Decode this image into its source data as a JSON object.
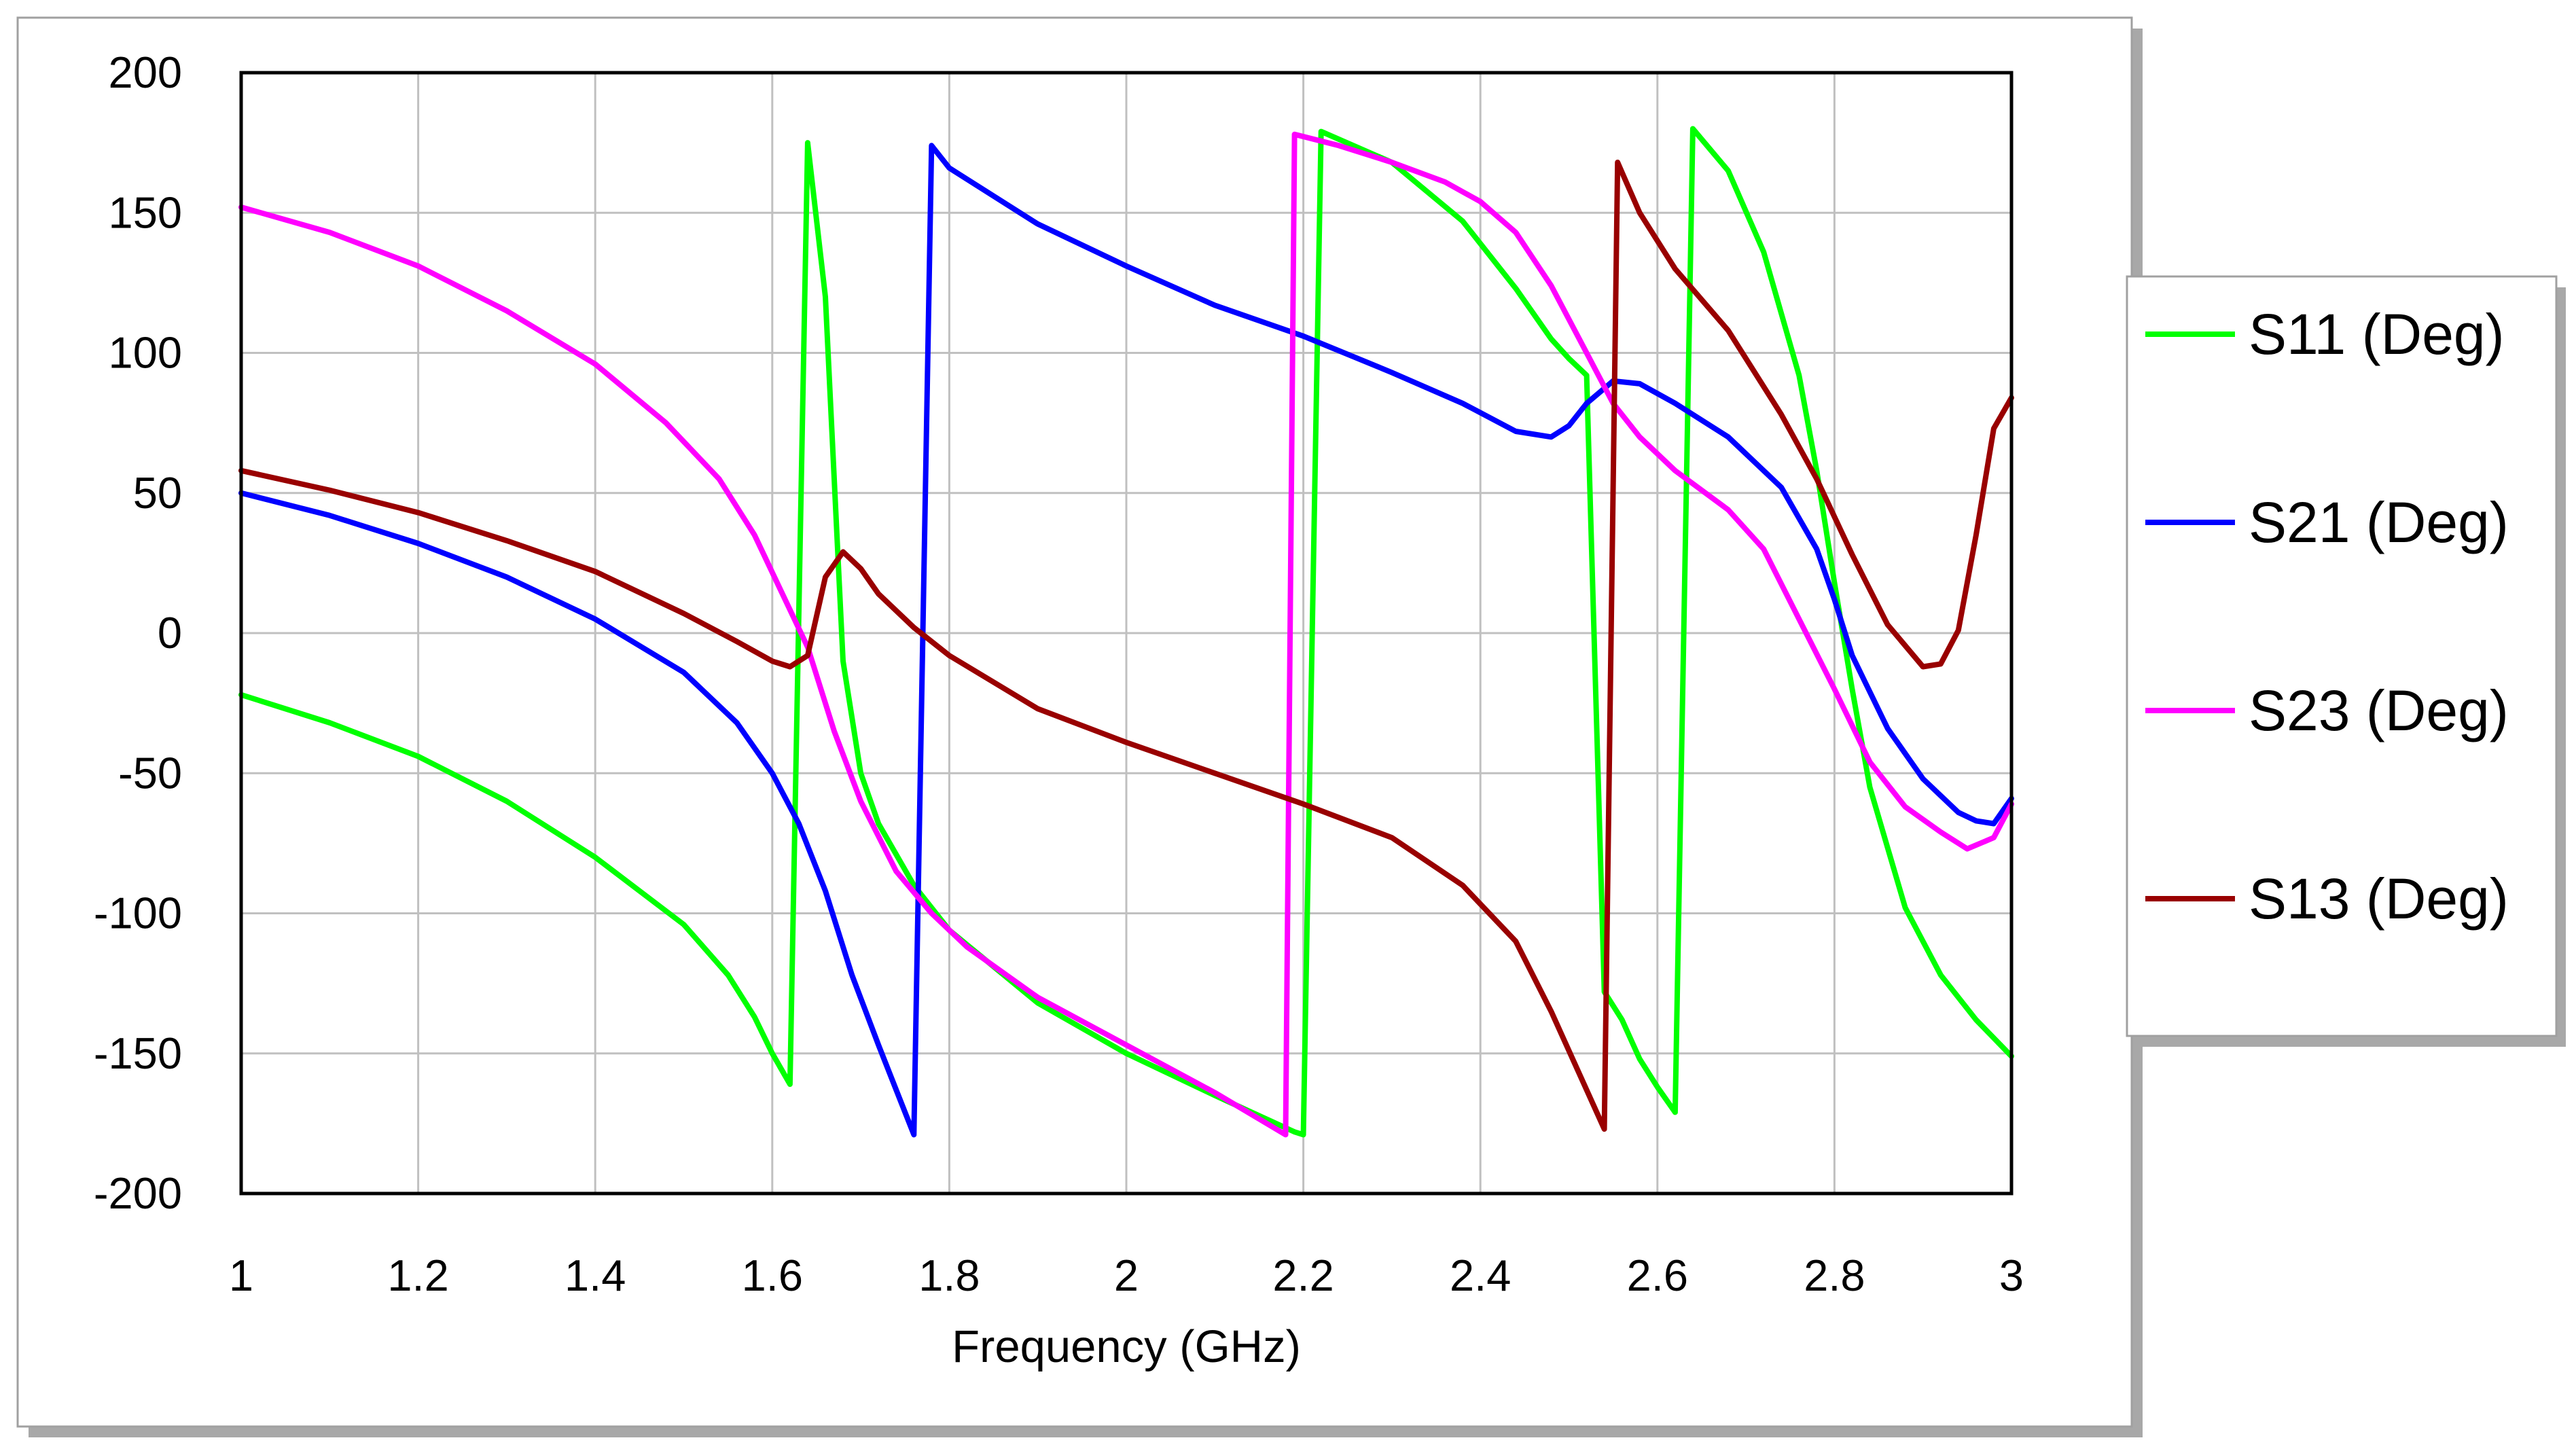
{
  "chart_data": {
    "type": "line",
    "title": "",
    "xlabel": "Frequency (GHz)",
    "ylabel": "",
    "xlim": [
      1,
      3
    ],
    "ylim": [
      -200,
      200
    ],
    "grid": true,
    "legend_position": "right",
    "x_ticks": [
      1,
      1.2,
      1.4,
      1.6,
      1.8,
      2,
      2.2,
      2.4,
      2.6,
      2.8,
      3
    ],
    "x_tick_labels": [
      "1",
      "1.2",
      "1.4",
      "1.6",
      "1.8",
      "2",
      "2.2",
      "2.4",
      "2.6",
      "2.8",
      "3"
    ],
    "y_ticks": [
      200,
      150,
      100,
      50,
      0,
      -50,
      -100,
      -150,
      -200
    ],
    "y_tick_labels": [
      "200",
      "150",
      "100",
      "50",
      "0",
      "-50",
      "-100",
      "-150",
      "-200"
    ],
    "series": [
      {
        "name": "S11 (Deg)",
        "color": "#00ff00",
        "points": [
          [
            1.0,
            -22
          ],
          [
            1.1,
            -32
          ],
          [
            1.2,
            -44
          ],
          [
            1.3,
            -60
          ],
          [
            1.4,
            -80
          ],
          [
            1.5,
            -104
          ],
          [
            1.55,
            -122
          ],
          [
            1.58,
            -137
          ],
          [
            1.6,
            -150
          ],
          [
            1.62,
            -161
          ],
          [
            1.64,
            175
          ],
          [
            1.66,
            120
          ],
          [
            1.68,
            -10
          ],
          [
            1.7,
            -50
          ],
          [
            1.72,
            -68
          ],
          [
            1.76,
            -90
          ],
          [
            1.8,
            -106
          ],
          [
            1.9,
            -132
          ],
          [
            2.0,
            -150
          ],
          [
            2.1,
            -165
          ],
          [
            2.19,
            -178
          ],
          [
            2.2,
            -179
          ],
          [
            2.22,
            179
          ],
          [
            2.3,
            168
          ],
          [
            2.38,
            147
          ],
          [
            2.44,
            123
          ],
          [
            2.48,
            105
          ],
          [
            2.5,
            98
          ],
          [
            2.52,
            92
          ],
          [
            2.54,
            -128
          ],
          [
            2.56,
            -138
          ],
          [
            2.58,
            -152
          ],
          [
            2.6,
            -162
          ],
          [
            2.62,
            -171
          ],
          [
            2.64,
            180
          ],
          [
            2.68,
            165
          ],
          [
            2.72,
            136
          ],
          [
            2.76,
            92
          ],
          [
            2.78,
            58
          ],
          [
            2.8,
            18
          ],
          [
            2.82,
            -20
          ],
          [
            2.84,
            -55
          ],
          [
            2.88,
            -98
          ],
          [
            2.92,
            -122
          ],
          [
            2.96,
            -138
          ],
          [
            3.0,
            -151
          ]
        ]
      },
      {
        "name": "S21 (Deg)",
        "color": "#0000ff",
        "points": [
          [
            1.0,
            50
          ],
          [
            1.1,
            42
          ],
          [
            1.2,
            32
          ],
          [
            1.3,
            20
          ],
          [
            1.4,
            5
          ],
          [
            1.5,
            -14
          ],
          [
            1.56,
            -32
          ],
          [
            1.6,
            -50
          ],
          [
            1.63,
            -68
          ],
          [
            1.66,
            -92
          ],
          [
            1.69,
            -122
          ],
          [
            1.72,
            -147
          ],
          [
            1.74,
            -163
          ],
          [
            1.76,
            -179
          ],
          [
            1.78,
            174
          ],
          [
            1.8,
            166
          ],
          [
            1.9,
            146
          ],
          [
            2.0,
            131
          ],
          [
            2.1,
            117
          ],
          [
            2.2,
            106
          ],
          [
            2.3,
            93
          ],
          [
            2.38,
            82
          ],
          [
            2.44,
            72
          ],
          [
            2.48,
            70
          ],
          [
            2.5,
            74
          ],
          [
            2.52,
            82
          ],
          [
            2.55,
            90
          ],
          [
            2.58,
            89
          ],
          [
            2.62,
            82
          ],
          [
            2.68,
            70
          ],
          [
            2.74,
            52
          ],
          [
            2.78,
            30
          ],
          [
            2.8,
            12
          ],
          [
            2.82,
            -8
          ],
          [
            2.86,
            -34
          ],
          [
            2.9,
            -52
          ],
          [
            2.94,
            -64
          ],
          [
            2.96,
            -67
          ],
          [
            2.98,
            -68
          ],
          [
            3.0,
            -59
          ]
        ]
      },
      {
        "name": "S23 (Deg)",
        "color": "#ff00ff",
        "points": [
          [
            1.0,
            152
          ],
          [
            1.1,
            143
          ],
          [
            1.2,
            131
          ],
          [
            1.3,
            115
          ],
          [
            1.4,
            96
          ],
          [
            1.48,
            75
          ],
          [
            1.54,
            55
          ],
          [
            1.58,
            35
          ],
          [
            1.61,
            15
          ],
          [
            1.64,
            -5
          ],
          [
            1.67,
            -35
          ],
          [
            1.7,
            -60
          ],
          [
            1.74,
            -85
          ],
          [
            1.78,
            -100
          ],
          [
            1.82,
            -112
          ],
          [
            1.9,
            -130
          ],
          [
            2.0,
            -147
          ],
          [
            2.1,
            -164
          ],
          [
            2.18,
            -179
          ],
          [
            2.19,
            178
          ],
          [
            2.24,
            174
          ],
          [
            2.3,
            168
          ],
          [
            2.36,
            161
          ],
          [
            2.4,
            154
          ],
          [
            2.44,
            143
          ],
          [
            2.48,
            124
          ],
          [
            2.52,
            100
          ],
          [
            2.55,
            82
          ],
          [
            2.58,
            70
          ],
          [
            2.62,
            58
          ],
          [
            2.68,
            44
          ],
          [
            2.72,
            30
          ],
          [
            2.76,
            5
          ],
          [
            2.8,
            -20
          ],
          [
            2.84,
            -46
          ],
          [
            2.88,
            -62
          ],
          [
            2.92,
            -71
          ],
          [
            2.95,
            -77
          ],
          [
            2.98,
            -73
          ],
          [
            3.0,
            -61
          ]
        ]
      },
      {
        "name": "S13 (Deg)",
        "color": "#990000",
        "points": [
          [
            1.0,
            58
          ],
          [
            1.1,
            51
          ],
          [
            1.2,
            43
          ],
          [
            1.3,
            33
          ],
          [
            1.4,
            22
          ],
          [
            1.5,
            7
          ],
          [
            1.56,
            -3
          ],
          [
            1.6,
            -10
          ],
          [
            1.62,
            -12
          ],
          [
            1.64,
            -8
          ],
          [
            1.66,
            20
          ],
          [
            1.68,
            29
          ],
          [
            1.7,
            23
          ],
          [
            1.72,
            14
          ],
          [
            1.76,
            2
          ],
          [
            1.8,
            -8
          ],
          [
            1.9,
            -27
          ],
          [
            2.0,
            -39
          ],
          [
            2.1,
            -50
          ],
          [
            2.2,
            -61
          ],
          [
            2.3,
            -73
          ],
          [
            2.38,
            -90
          ],
          [
            2.44,
            -110
          ],
          [
            2.48,
            -135
          ],
          [
            2.51,
            -156
          ],
          [
            2.54,
            -177
          ],
          [
            2.555,
            168
          ],
          [
            2.58,
            150
          ],
          [
            2.62,
            130
          ],
          [
            2.68,
            108
          ],
          [
            2.74,
            78
          ],
          [
            2.78,
            55
          ],
          [
            2.82,
            28
          ],
          [
            2.86,
            3
          ],
          [
            2.9,
            -12
          ],
          [
            2.92,
            -11
          ],
          [
            2.94,
            1
          ],
          [
            2.96,
            35
          ],
          [
            2.98,
            73
          ],
          [
            3.0,
            84
          ]
        ]
      }
    ]
  }
}
